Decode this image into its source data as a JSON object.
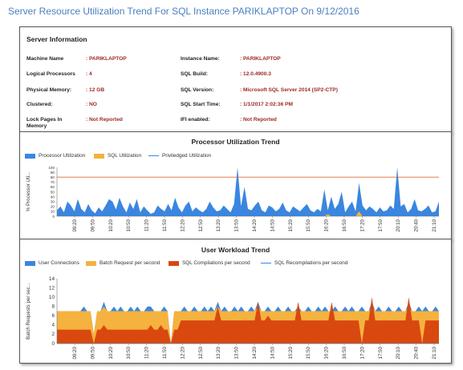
{
  "page_title": "Server Resource Utilization Trend For SQL Instance PARIKLAPTOP On 9/12/2016",
  "server_info": {
    "heading": "Server Information",
    "rows": [
      {
        "label": "Machine Name",
        "value": ": PARIKLAPTOP"
      },
      {
        "label": "Logical Processors",
        "value": ": 4"
      },
      {
        "label": "Physical Memory:",
        "value": ": 12 GB"
      },
      {
        "label": "Clustered:",
        "value": ": NO"
      },
      {
        "label": "Lock Pages In Memory",
        "value": ": Not Reported"
      },
      {
        "label": "Instance Name:",
        "value": ": PARIKLAPTOP"
      },
      {
        "label": "SQL Build:",
        "value": ": 12.0.4900.3"
      },
      {
        "label": "SQL Version:",
        "value": ": Microsoft SQL Server 2014 (SP2-CTP)"
      },
      {
        "label": "SQL Start Time:",
        "value": ": 1/1/2017 2:02:36 PM"
      },
      {
        "label": "IFI enabled:",
        "value": ": Not Reported"
      }
    ]
  },
  "colors": {
    "title_blue": "#4a7fc0",
    "value_red": "#a02828",
    "blue": "#3a86e0",
    "orange": "#f5b23e",
    "red": "#d9480f",
    "threshold": "#e06a3a"
  },
  "chart_data": [
    {
      "type": "area",
      "title": "Processor Utilization Trend",
      "ylabel": "% Processor Uti...",
      "ylim": [
        0,
        100
      ],
      "yticks": [
        0,
        10,
        20,
        30,
        40,
        50,
        60,
        70,
        80,
        90,
        100
      ],
      "threshold": 80,
      "x_tick_labels": [
        "09:20",
        "09:50",
        "10:20",
        "10:50",
        "11:20",
        "11:50",
        "12:20",
        "12:50",
        "13:20",
        "13:50",
        "14:20",
        "14:50",
        "15:20",
        "15:50",
        "16:20",
        "16:50",
        "17:20",
        "17:50",
        "20:10",
        "20:40",
        "21:10"
      ],
      "legend": [
        {
          "name": "Processor Utilization",
          "style": "area",
          "color": "#3a86e0"
        },
        {
          "name": "SQL Utilization",
          "style": "area",
          "color": "#f5b23e"
        },
        {
          "name": "Priviledged Utilization",
          "style": "line",
          "color": "#3a86e0"
        }
      ],
      "series": [
        {
          "name": "Processor Utilization",
          "values": [
            12,
            20,
            8,
            30,
            22,
            10,
            35,
            15,
            8,
            25,
            12,
            6,
            18,
            10,
            22,
            35,
            30,
            14,
            38,
            20,
            8,
            28,
            15,
            35,
            8,
            20,
            12,
            5,
            8,
            22,
            15,
            10,
            25,
            12,
            38,
            18,
            8,
            22,
            30,
            10,
            18,
            12,
            8,
            15,
            30,
            18,
            10,
            12,
            22,
            15,
            8,
            25,
            100,
            20,
            60,
            15,
            12,
            22,
            30,
            12,
            8,
            22,
            18,
            10,
            15,
            28,
            12,
            8,
            20,
            15,
            10,
            18,
            25,
            12,
            8,
            15,
            10,
            55,
            12,
            40,
            15,
            25,
            50,
            8,
            20,
            30,
            10,
            68,
            22,
            12,
            20,
            15,
            8,
            18,
            10,
            12,
            22,
            15,
            100,
            20,
            25,
            8,
            15,
            35,
            12,
            10,
            15,
            22,
            8,
            10,
            30
          ]
        },
        {
          "name": "SQL Utilization",
          "values": [
            0,
            0,
            0,
            0,
            0,
            0,
            0,
            0,
            0,
            0,
            0,
            0,
            0,
            0,
            0,
            0,
            0,
            0,
            0,
            0,
            0,
            0,
            0,
            0,
            0,
            0,
            0,
            0,
            0,
            0,
            0,
            0,
            0,
            0,
            0,
            0,
            0,
            0,
            0,
            0,
            0,
            0,
            0,
            0,
            0,
            0,
            0,
            0,
            0,
            0,
            0,
            0,
            0,
            0,
            0,
            0,
            0,
            0,
            0,
            0,
            0,
            0,
            0,
            0,
            0,
            0,
            0,
            0,
            0,
            0,
            0,
            0,
            0,
            0,
            0,
            0,
            0,
            0,
            5,
            0,
            0,
            0,
            0,
            0,
            0,
            0,
            0,
            10,
            0,
            0,
            0,
            0,
            0,
            0,
            0,
            0,
            0,
            0,
            0,
            0,
            0,
            0,
            0,
            0,
            0,
            0,
            0,
            0,
            0,
            0,
            0
          ]
        },
        {
          "name": "Priviledged Utilization",
          "values": [
            4,
            6,
            3,
            8,
            6,
            3,
            9,
            5,
            3,
            7,
            4,
            2,
            5,
            3,
            6,
            9,
            8,
            4,
            10,
            6,
            3,
            8,
            5,
            9,
            3,
            6,
            4,
            2,
            3,
            6,
            5,
            3,
            7,
            4,
            10,
            5,
            3,
            6,
            8,
            3,
            5,
            4,
            3,
            5,
            8,
            5,
            3,
            4,
            6,
            5,
            3,
            7,
            60,
            6,
            15,
            5,
            4,
            6,
            8,
            4,
            3,
            6,
            5,
            3,
            5,
            8,
            4,
            3,
            6,
            5,
            3,
            5,
            7,
            4,
            3,
            5,
            3,
            14,
            4,
            11,
            5,
            7,
            13,
            3,
            6,
            8,
            3,
            17,
            6,
            4,
            6,
            5,
            3,
            5,
            3,
            4,
            6,
            5,
            60,
            6,
            7,
            3,
            5,
            9,
            4,
            3,
            5,
            6,
            3,
            3,
            8
          ]
        }
      ]
    },
    {
      "type": "area",
      "title": "User Workload Trend",
      "ylabel": "Batch Requests per sec...",
      "ylim": [
        0,
        14
      ],
      "yticks": [
        0,
        2,
        4,
        6,
        8,
        10,
        12,
        14
      ],
      "x_tick_labels": [
        "09:20",
        "09:50",
        "10:20",
        "10:50",
        "11:20",
        "11:50",
        "12:20",
        "12:50",
        "13:20",
        "13:50",
        "14:20",
        "14:50",
        "15:20",
        "15:50",
        "16:20",
        "16:50",
        "17:20",
        "17:50",
        "20:10",
        "20:40",
        "21:10"
      ],
      "legend": [
        {
          "name": "User Connections",
          "style": "area",
          "color": "#3a86e0"
        },
        {
          "name": "Batch Request per second",
          "style": "area",
          "color": "#f5b23e"
        },
        {
          "name": "SQL Compilations per second",
          "style": "area",
          "color": "#d9480f"
        },
        {
          "name": "SQL Recompilations per second",
          "style": "line",
          "color": "#3a86e0"
        }
      ],
      "series": [
        {
          "name": "User Connections",
          "values": [
            7,
            7,
            7,
            7,
            7,
            7,
            7,
            7,
            8,
            7,
            7,
            2,
            7,
            7,
            9,
            7,
            7,
            8,
            7,
            8,
            7,
            7,
            8,
            7,
            8,
            7,
            7,
            8,
            8,
            7,
            7,
            7,
            8,
            7,
            0,
            7,
            7,
            7,
            8,
            7,
            7,
            8,
            7,
            7,
            8,
            7,
            8,
            7,
            9,
            7,
            8,
            7,
            7,
            8,
            7,
            8,
            7,
            7,
            8,
            7,
            9,
            7,
            7,
            8,
            7,
            7,
            8,
            7,
            7,
            8,
            7,
            7,
            8,
            7,
            7,
            8,
            7,
            7,
            8,
            7,
            8,
            7,
            7,
            8,
            7,
            7,
            8,
            7,
            8,
            7,
            7,
            8,
            7,
            7,
            9,
            7,
            8,
            7,
            7,
            8,
            7,
            7,
            8,
            7,
            7,
            9,
            7,
            7,
            8,
            7,
            8,
            7,
            7,
            8,
            7
          ]
        },
        {
          "name": "Batch Request per second",
          "values": [
            7,
            7,
            7,
            7,
            7,
            7,
            7,
            7,
            7,
            7,
            7,
            2,
            7,
            7,
            8,
            7,
            7,
            7,
            7,
            7,
            7,
            7,
            7,
            7,
            7,
            7,
            7,
            7,
            7,
            7,
            7,
            7,
            7,
            7,
            0,
            7,
            7,
            7,
            7,
            7,
            7,
            7,
            7,
            7,
            7,
            7,
            7,
            7,
            8,
            7,
            7,
            7,
            7,
            7,
            7,
            7,
            7,
            7,
            7,
            7,
            8,
            7,
            7,
            7,
            7,
            7,
            7,
            7,
            7,
            7,
            7,
            7,
            7,
            7,
            7,
            7,
            7,
            7,
            7,
            7,
            7,
            7,
            7,
            7,
            7,
            7,
            7,
            7,
            7,
            7,
            7,
            7,
            7,
            7,
            8,
            7,
            7,
            7,
            7,
            7,
            7,
            7,
            7,
            7,
            7,
            8,
            7,
            7,
            7,
            7,
            7,
            7,
            7,
            7,
            7
          ]
        },
        {
          "name": "SQL Compilations per second",
          "values": [
            3,
            3,
            3,
            3,
            3,
            3,
            3,
            3,
            3,
            3,
            3,
            0,
            3,
            3,
            4,
            3,
            3,
            3,
            3,
            3,
            3,
            3,
            3,
            3,
            3,
            3,
            3,
            3,
            4,
            3,
            3,
            4,
            3,
            3,
            0,
            3,
            3,
            5,
            5,
            5,
            5,
            5,
            5,
            5,
            5,
            5,
            5,
            5,
            8,
            5,
            5,
            5,
            5,
            5,
            5,
            5,
            5,
            5,
            5,
            5,
            9,
            5,
            5,
            6,
            5,
            5,
            5,
            5,
            5,
            5,
            5,
            5,
            9,
            5,
            5,
            5,
            5,
            5,
            5,
            5,
            5,
            5,
            9,
            5,
            5,
            5,
            5,
            5,
            5,
            5,
            5,
            0,
            5,
            5,
            10,
            5,
            5,
            5,
            5,
            5,
            5,
            5,
            5,
            5,
            5,
            10,
            5,
            5,
            5,
            0,
            5,
            5,
            5,
            5,
            5
          ]
        },
        {
          "name": "SQL Recompilations per second",
          "values": [
            0,
            0,
            0,
            0,
            0,
            0,
            0,
            0,
            0,
            0,
            0,
            0,
            0,
            0,
            0,
            0,
            0,
            0,
            0,
            0,
            0,
            0,
            0,
            0,
            0,
            0,
            0,
            0,
            0,
            0,
            0,
            0,
            0,
            0,
            0,
            0,
            0,
            0,
            0,
            0,
            0,
            0,
            0,
            0,
            0,
            0,
            0,
            0,
            0,
            0,
            0,
            0,
            0,
            0,
            0,
            0,
            0,
            0,
            0,
            0,
            0,
            0,
            0,
            0,
            0,
            0,
            0,
            0,
            0,
            0,
            0,
            0,
            0,
            0,
            0,
            0,
            0,
            0,
            0,
            0,
            0,
            0,
            0,
            0,
            0,
            0,
            0,
            0,
            0,
            0,
            0,
            0,
            0,
            0,
            0,
            0,
            0,
            0,
            0,
            0,
            0,
            0,
            0,
            0,
            0,
            0,
            0,
            0,
            0,
            0,
            0,
            0,
            0,
            0,
            0
          ]
        }
      ]
    }
  ]
}
